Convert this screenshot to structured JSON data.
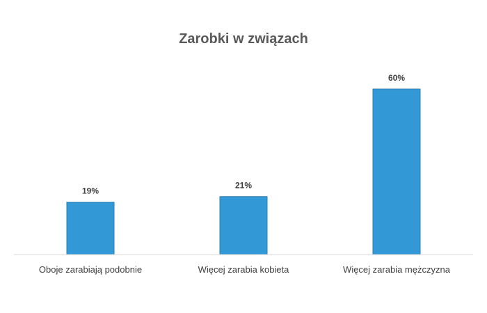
{
  "chart_data": {
    "type": "bar",
    "title": "Zarobki w związach",
    "categories": [
      "Oboje zarabiają podobnie",
      "Więcej zarabia kobieta",
      "Więcej zarabia mężczyzna"
    ],
    "values": [
      19,
      21,
      60
    ],
    "value_labels": [
      "19%",
      "21%",
      "60%"
    ],
    "ylim": [
      0,
      60
    ],
    "grid": false,
    "legend": "none",
    "colors": {
      "bar": "#3399d6",
      "bar_edge": "#2a7fb7",
      "axis": "#d9d9d9"
    }
  }
}
